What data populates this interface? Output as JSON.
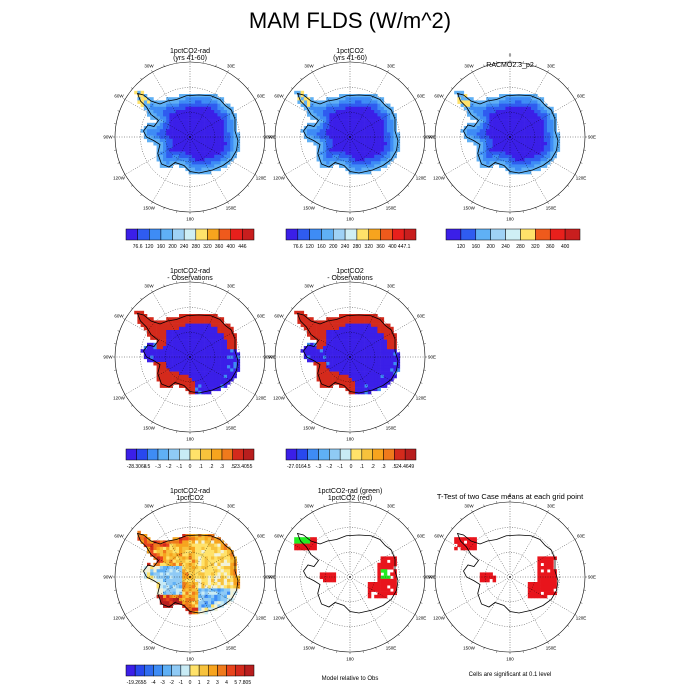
{
  "figure": {
    "title": "MAM FLDS (W/m^2)",
    "polar_labels": {
      "top": "0",
      "bottom": "180",
      "left": "90W",
      "right": "90E",
      "upper_left_1": "30W",
      "upper_left_2": "60W",
      "upper_right_1": "30E",
      "upper_right_2": "60E",
      "lower_left_1": "120W",
      "lower_left_2": "150W",
      "lower_right_1": "120E",
      "lower_right_2": "150E"
    }
  },
  "colors": {
    "abs_scale": [
      "#3b1fe8",
      "#2f5cf0",
      "#3e8cf5",
      "#5fb0f5",
      "#9fd2f5",
      "#cfeff5",
      "#ffe26a",
      "#f7a41e",
      "#ef5a1c",
      "#e8201c",
      "#c81e1e"
    ],
    "diff_scale": [
      "#3b1fe8",
      "#2848ee",
      "#2f6cf0",
      "#3e8cf5",
      "#5fb0f5",
      "#8fcaf5",
      "#c8ebf5",
      "#f2f2d8",
      "#ffe26a",
      "#f7c23c",
      "#f7a41e",
      "#ef7a1c",
      "#e8441c",
      "#d42a1c",
      "#b81e1e"
    ],
    "sig_fill": "#e8141c",
    "green_fill": "#22ee22"
  },
  "chart_data": [
    {
      "type": "heatmap",
      "title_lines": [
        "1pctCO2-rad",
        "(yrs 41-60)"
      ],
      "colorbar_labels": [
        "76.6",
        "120",
        "160",
        "200",
        "240",
        "280",
        "320",
        "360",
        "400",
        "446"
      ],
      "pattern": "absolute"
    },
    {
      "type": "heatmap",
      "title_lines": [
        "1pctCO2",
        "(yrs 41-60)"
      ],
      "colorbar_labels": [
        "76.6",
        "120",
        "160",
        "200",
        "240",
        "280",
        "320",
        "360",
        "400",
        "447.1"
      ],
      "pattern": "absolute"
    },
    {
      "type": "heatmap",
      "title_lines": [
        "RACMO2.3_p2"
      ],
      "colorbar_labels": [
        "120",
        "160",
        "200",
        "240",
        "280",
        "320",
        "360",
        "400"
      ],
      "pattern": "absolute"
    },
    {
      "type": "heatmap",
      "title_lines": [
        "1pctCO2-rad",
        "- Observations"
      ],
      "colorbar_labels": [
        "-28.3068",
        "-.5",
        "-.3",
        "-.2",
        "-.1",
        "0",
        ".1",
        ".2",
        ".3",
        ".5",
        "23.4055"
      ],
      "pattern": "bias"
    },
    {
      "type": "heatmap",
      "title_lines": [
        "1pctCO2",
        "- Observations"
      ],
      "colorbar_labels": [
        "-27.0164",
        "-.5",
        "-.3",
        "-.2",
        "-.1",
        "0",
        ".1",
        ".2",
        ".3",
        ".5",
        "24.4649"
      ],
      "pattern": "bias"
    },
    {
      "type": "heatmap",
      "title_lines": [
        "1pctCO2-rad",
        "1pctCO2"
      ],
      "colorbar_labels": [
        "-19.265",
        "-5",
        "-4",
        "-3",
        "-2",
        "-1",
        "0",
        "1",
        "2",
        "3",
        "4",
        "5",
        "7.805"
      ],
      "pattern": "difference"
    },
    {
      "type": "heatmap",
      "title_lines": [
        "1pctCO2-rad (green)",
        "1pctCO2 (red)"
      ],
      "note": "Model relative to Obs",
      "pattern": "significance-pair"
    },
    {
      "type": "heatmap",
      "title_lines": [
        "T-Test of two Case means at each grid point"
      ],
      "note": "Cells are significant at 0.1 level",
      "pattern": "significance"
    }
  ]
}
